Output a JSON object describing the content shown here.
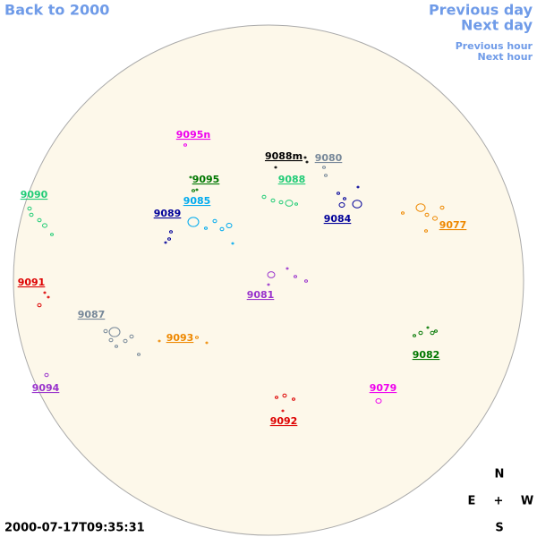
{
  "nav": {
    "back": "Back to 2000",
    "previous_day": "Previous day",
    "next_day": "Next day",
    "previous_hour": "Previous hour",
    "next_hour": "Next hour"
  },
  "regions": [
    {
      "label": "9095n",
      "color": "#ee00ee"
    },
    {
      "label": "9088m",
      "color": "#000000"
    },
    {
      "label": "9080",
      "color": "#778899"
    },
    {
      "label": "9095",
      "color": "#007700"
    },
    {
      "label": "9090",
      "color": "#22cc77"
    },
    {
      "label": "9088",
      "color": "#22cc77"
    },
    {
      "label": "9085",
      "color": "#00aaee"
    },
    {
      "label": "9084",
      "color": "#000099"
    },
    {
      "label": "9077",
      "color": "#ee8800"
    },
    {
      "label": "9089",
      "color": "#000099"
    },
    {
      "label": "9091",
      "color": "#dd0000"
    },
    {
      "label": "9081",
      "color": "#9933cc"
    },
    {
      "label": "9087",
      "color": "#778899"
    },
    {
      "label": "9093",
      "color": "#ee8800"
    },
    {
      "label": "9082",
      "color": "#007700"
    },
    {
      "label": "9094",
      "color": "#9933cc"
    },
    {
      "label": "9079",
      "color": "#ee00ee"
    },
    {
      "label": "9092",
      "color": "#dd0000"
    }
  ],
  "compass": {
    "north": "N",
    "east": "E",
    "center": "+",
    "west": "W",
    "south": "S"
  },
  "timestamp": "2000-07-17T09:35:31"
}
